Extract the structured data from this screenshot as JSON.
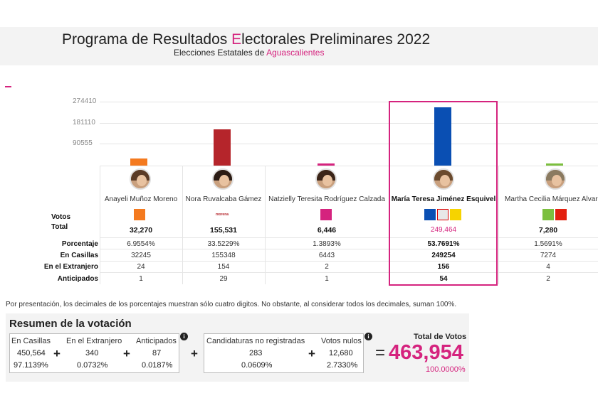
{
  "header": {
    "title_pre": "Programa de Resultados ",
    "title_accent": "E",
    "title_post": "lectorales Preliminares 2022",
    "subtitle_pre": "Elecciones Estatales de ",
    "subtitle_accent": "Aguascalientes"
  },
  "chart_data": {
    "type": "bar",
    "categories": [
      "Anayeli Muñoz Moreno",
      "Nora Ruvalcaba Gámez",
      "Natzielly Teresita Rodríguez Calzada",
      "María Teresa Jiménez Esquivel",
      "Martha Cecilia Márquez Alvarado"
    ],
    "values": [
      32270,
      155531,
      6446,
      249464,
      7280
    ],
    "yticks": [
      "274410",
      "181110",
      "90555"
    ],
    "ylim": [
      0,
      274410
    ],
    "colors": [
      "#f47a1f",
      "#b5252b",
      "#d5237e",
      "#0a4fb3",
      "#7cbf3f"
    ]
  },
  "candidates": [
    {
      "name": "Anayeli Muñoz Moreno",
      "party": "MC",
      "total": "32,270",
      "pct": "6.9554%",
      "casillas": "32245",
      "extranjero": "24",
      "anticipados": "1"
    },
    {
      "name": "Nora Ruvalcaba Gámez",
      "party": "morena",
      "total": "155,531",
      "pct": "33.5229%",
      "casillas": "155348",
      "extranjero": "154",
      "anticipados": "29"
    },
    {
      "name": "Natzielly Teresita Rodríguez Calzada",
      "party": "FUERZA POR MÉXICO",
      "total": "6,446",
      "pct": "1.3893%",
      "casillas": "6443",
      "extranjero": "2",
      "anticipados": "1"
    },
    {
      "name": "María Teresa Jiménez Esquivel",
      "party": "PAN PRI PRD",
      "total": "249,464",
      "pct": "53.7691%",
      "casillas": "249254",
      "extranjero": "156",
      "anticipados": "54"
    },
    {
      "name": "Martha Cecilia Márquez Alvara",
      "party": "VERDE PT",
      "total": "7,280",
      "pct": "1.5691%",
      "casillas": "7274",
      "extranjero": "4",
      "anticipados": "2"
    }
  ],
  "row_labels": {
    "votos": "Votos",
    "total": "Total",
    "porcentaje": "Porcentaje",
    "casillas": "En Casillas",
    "extranjero": "En el Extranjero",
    "anticipados": "Anticipados"
  },
  "note": "Por presentación, los decimales de los porcentajes muestran sólo cuatro digitos. No obstante, al considerar todos los decimales, suman 100%.",
  "summary": {
    "title": "Resumen de la votación",
    "casillas_label": "En Casillas",
    "casillas_value": "450,564",
    "casillas_pct": "97.1139%",
    "extranjero_label": "En el Extranjero",
    "extranjero_value": "340",
    "extranjero_pct": "0.0732%",
    "anticipados_label": "Anticipados",
    "anticipados_value": "87",
    "anticipados_pct": "0.0187%",
    "noreg_label": "Candidaturas no registradas",
    "noreg_value": "283",
    "noreg_pct": "0.0609%",
    "nulos_label": "Votos nulos",
    "nulos_value": "12,680",
    "nulos_pct": "2.7330%",
    "total_label": "Total de Votos",
    "total_value": "463,954",
    "total_pct": "100.0000%",
    "plus": "+",
    "equals": "=",
    "info": "i"
  }
}
